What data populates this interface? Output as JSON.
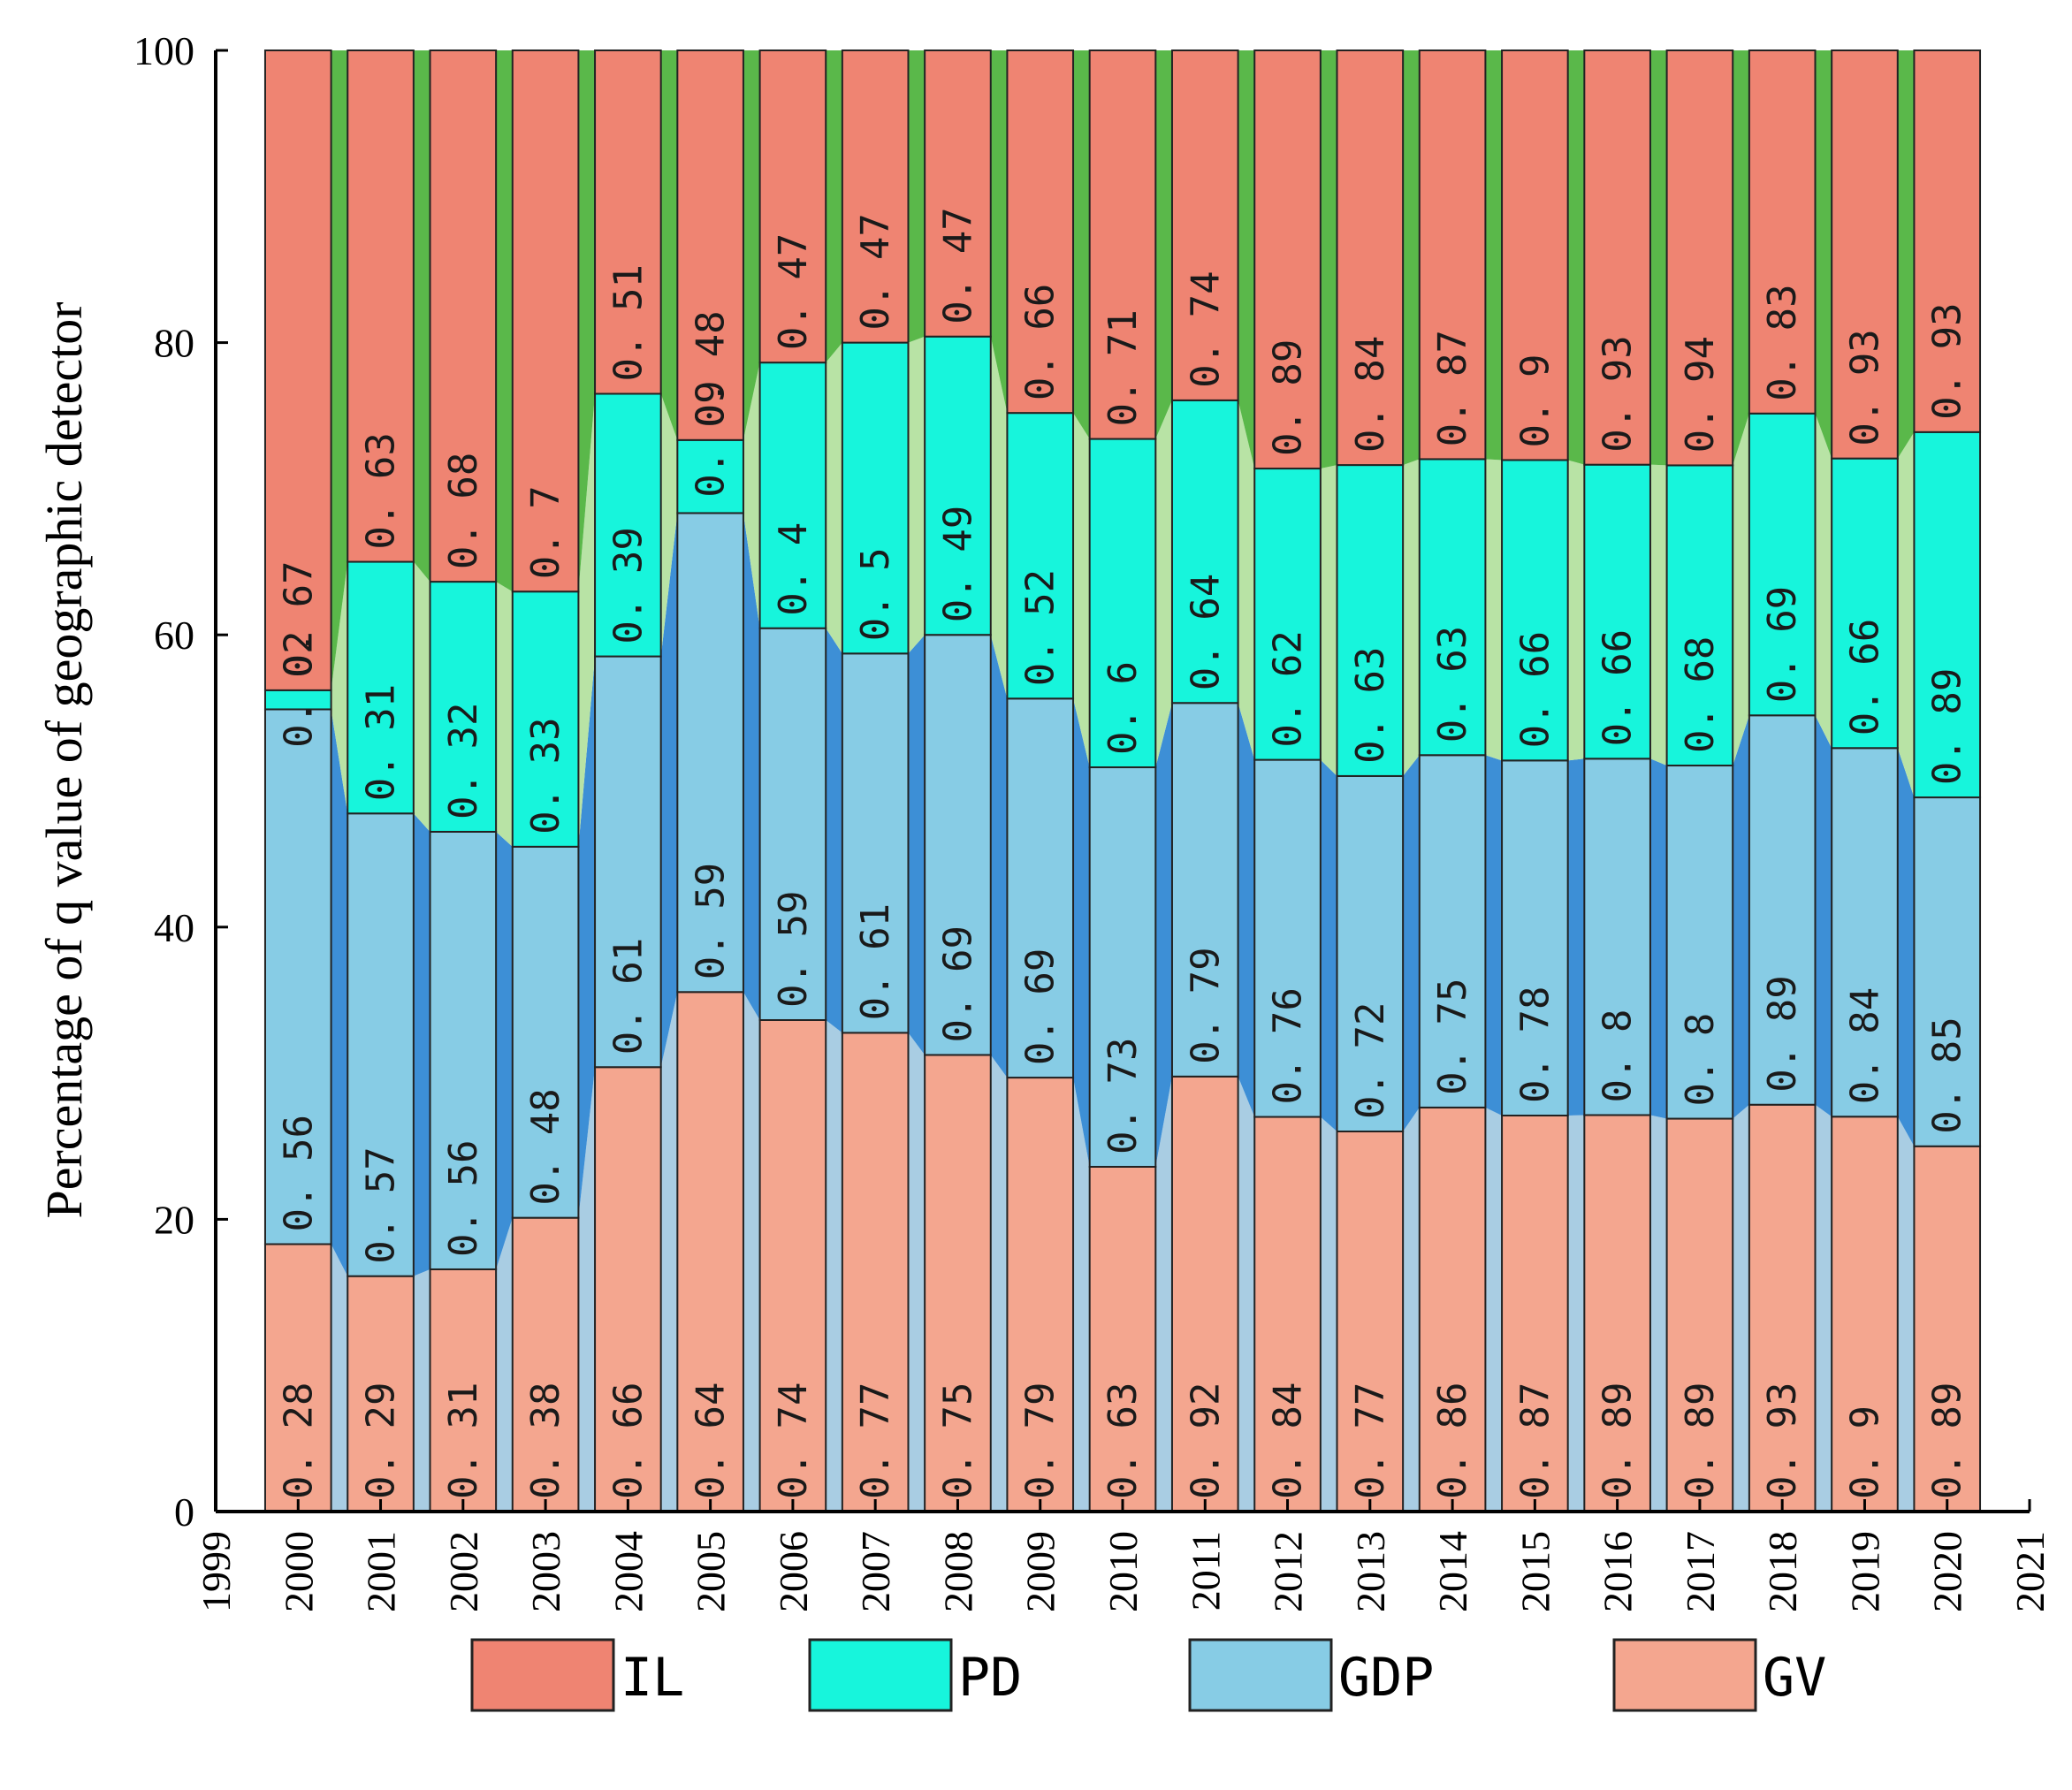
{
  "chart_data": {
    "type": "bar",
    "stacked": true,
    "percent_stacked": true,
    "categories": [
      "2000",
      "2001",
      "2002",
      "2003",
      "2004",
      "2005",
      "2006",
      "2007",
      "2008",
      "2009",
      "2010",
      "2011",
      "2012",
      "2013",
      "2014",
      "2015",
      "2016",
      "2017",
      "2018",
      "2019",
      "2020"
    ],
    "series": [
      {
        "name": "GV",
        "color": "#F4A68F",
        "band_color": "#A9CDE3",
        "values": [
          0.28,
          0.29,
          0.31,
          0.38,
          0.66,
          0.64,
          0.74,
          0.77,
          0.75,
          0.79,
          0.63,
          0.92,
          0.84,
          0.77,
          0.86,
          0.87,
          0.89,
          0.89,
          0.93,
          0.9,
          0.89
        ],
        "labels": [
          "0. 28",
          "0. 29",
          "0. 31",
          "0. 38",
          "0. 66",
          "0. 64",
          "0. 74",
          "0. 77",
          "0. 75",
          "0. 79",
          "0. 63",
          "0. 92",
          "0. 84",
          "0. 77",
          "0. 86",
          "0. 87",
          "0. 89",
          "0. 89",
          "0. 93",
          "0. 9",
          "0. 89"
        ]
      },
      {
        "name": "GDP",
        "color": "#87CCE5",
        "band_color": "#3D8FD6",
        "values": [
          0.56,
          0.57,
          0.56,
          0.48,
          0.61,
          0.59,
          0.59,
          0.61,
          0.69,
          0.69,
          0.73,
          0.79,
          0.76,
          0.72,
          0.75,
          0.78,
          0.8,
          0.8,
          0.89,
          0.84,
          0.85
        ],
        "labels": [
          "0. 56",
          "0. 57",
          "0. 56",
          "0. 48",
          "0. 61",
          "0. 59",
          "0. 59",
          "0. 61",
          "0. 69",
          "0. 69",
          "0. 73",
          "0. 79",
          "0. 76",
          "0. 72",
          "0. 75",
          "0. 78",
          "0. 8",
          "0. 8",
          "0. 89",
          "0. 84",
          "0. 85"
        ]
      },
      {
        "name": "PD",
        "color": "#17F5DC",
        "band_color": "#B8E3A5",
        "values": [
          0.02,
          0.31,
          0.32,
          0.33,
          0.39,
          0.09,
          0.4,
          0.5,
          0.49,
          0.52,
          0.6,
          0.64,
          0.62,
          0.63,
          0.63,
          0.66,
          0.66,
          0.68,
          0.69,
          0.66,
          0.89
        ],
        "labels": [
          "0. 02",
          "0. 31",
          "0. 32",
          "0. 33",
          "0. 39",
          "0. 09",
          "0. 4",
          "0. 5",
          "0. 49",
          "0. 52",
          "0. 6",
          "0. 64",
          "0. 62",
          "0. 63",
          "0. 63",
          "0. 66",
          "0. 66",
          "0. 68",
          "0. 69",
          "0. 66",
          "0. 89"
        ]
      },
      {
        "name": "IL",
        "color": "#EF8472",
        "band_color": "#5AB84A",
        "values": [
          0.67,
          0.63,
          0.68,
          0.7,
          0.51,
          0.48,
          0.47,
          0.47,
          0.47,
          0.66,
          0.71,
          0.74,
          0.89,
          0.84,
          0.87,
          0.9,
          0.93,
          0.94,
          0.83,
          0.93,
          0.93
        ],
        "labels": [
          "0. 67",
          "0. 63",
          "0. 68",
          "0. 7",
          "0. 51",
          "0. 48",
          "0. 47",
          "0. 47",
          "0. 47",
          "0. 66",
          "0. 71",
          "0. 74",
          "0. 89",
          "0. 84",
          "0. 87",
          "0. 9",
          "0. 93",
          "0. 94",
          "0. 83",
          "0. 93",
          "0. 93"
        ]
      }
    ],
    "title": "",
    "xlabel": "",
    "ylabel": "Percentage of q value of geographic detector",
    "xlim": [
      1999,
      2021
    ],
    "x_ticks": [
      "1999",
      "2000",
      "2001",
      "2002",
      "2003",
      "2004",
      "2005",
      "2006",
      "2007",
      "2008",
      "2009",
      "2010",
      "2011",
      "2012",
      "2013",
      "2014",
      "2015",
      "2016",
      "2017",
      "2018",
      "2019",
      "2020",
      "2021"
    ],
    "ylim": [
      0,
      100
    ],
    "y_ticks": [
      "0",
      "20",
      "40",
      "60",
      "80",
      "100"
    ],
    "grid": false,
    "legend": {
      "position": "bottom",
      "entries": [
        {
          "label": "IL",
          "color": "#EF8472"
        },
        {
          "label": "PD",
          "color": "#17F5DC"
        },
        {
          "label": "GDP",
          "color": "#87CCE5"
        },
        {
          "label": "GV",
          "color": "#F4A68F"
        }
      ]
    }
  }
}
